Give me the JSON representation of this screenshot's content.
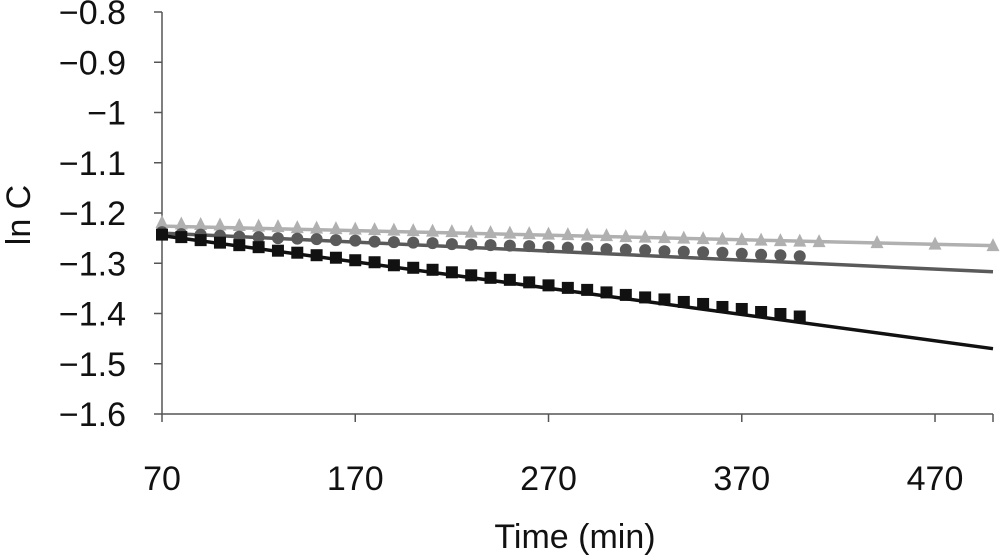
{
  "chart_data": {
    "type": "scatter",
    "xlabel": "Time (min)",
    "ylabel": "ln C",
    "xlim": [
      70,
      500
    ],
    "ylim": [
      -1.6,
      -0.8
    ],
    "x_ticks": [
      70,
      170,
      270,
      370,
      470
    ],
    "y_ticks": [
      -0.8,
      -0.9,
      -1,
      -1.1,
      -1.2,
      -1.3,
      -1.4,
      -1.5,
      -1.6
    ],
    "x_tick_labels": [
      "70",
      "170",
      "270",
      "370",
      "470"
    ],
    "y_tick_labels": [
      "−0.8",
      "−0.9",
      "−1",
      "−1.1",
      "−1.2",
      "−1.3",
      "−1.4",
      "−1.5",
      "−1.6"
    ],
    "grid": false,
    "series": [
      {
        "marker": "triangle",
        "color": "#b0b0b0",
        "x": [
          70,
          80,
          90,
          100,
          110,
          120,
          130,
          140,
          150,
          160,
          170,
          180,
          190,
          200,
          210,
          220,
          230,
          240,
          250,
          260,
          270,
          280,
          290,
          300,
          310,
          320,
          330,
          340,
          350,
          360,
          370,
          380,
          390,
          400,
          410,
          440,
          470,
          500
        ],
        "y": [
          -1.218,
          -1.221,
          -1.222,
          -1.223,
          -1.224,
          -1.225,
          -1.226,
          -1.228,
          -1.229,
          -1.23,
          -1.231,
          -1.232,
          -1.233,
          -1.234,
          -1.235,
          -1.236,
          -1.237,
          -1.238,
          -1.239,
          -1.24,
          -1.241,
          -1.242,
          -1.243,
          -1.244,
          -1.246,
          -1.247,
          -1.248,
          -1.249,
          -1.25,
          -1.251,
          -1.252,
          -1.253,
          -1.254,
          -1.255,
          -1.256,
          -1.258,
          -1.261,
          -1.264
        ],
        "fit": [
          [
            70,
            -1.226
          ],
          [
            500,
            -1.265
          ]
        ]
      },
      {
        "marker": "circle",
        "color": "#5a5a5a",
        "x": [
          70,
          80,
          90,
          100,
          110,
          120,
          130,
          140,
          150,
          160,
          170,
          180,
          190,
          200,
          210,
          220,
          230,
          240,
          250,
          260,
          270,
          280,
          290,
          300,
          310,
          320,
          330,
          340,
          350,
          360,
          370,
          380,
          390,
          400
        ],
        "y": [
          -1.238,
          -1.242,
          -1.243,
          -1.245,
          -1.247,
          -1.248,
          -1.25,
          -1.251,
          -1.252,
          -1.254,
          -1.255,
          -1.257,
          -1.258,
          -1.259,
          -1.26,
          -1.262,
          -1.263,
          -1.264,
          -1.265,
          -1.266,
          -1.268,
          -1.269,
          -1.27,
          -1.272,
          -1.273,
          -1.274,
          -1.276,
          -1.277,
          -1.278,
          -1.279,
          -1.281,
          -1.283,
          -1.284,
          -1.286
        ],
        "fit": [
          [
            70,
            -1.24
          ],
          [
            500,
            -1.317
          ]
        ]
      },
      {
        "marker": "square",
        "color": "#111111",
        "x": [
          70,
          80,
          90,
          100,
          110,
          120,
          130,
          140,
          150,
          160,
          170,
          180,
          190,
          200,
          210,
          220,
          230,
          240,
          250,
          260,
          270,
          280,
          290,
          300,
          310,
          320,
          330,
          340,
          350,
          360,
          370,
          380,
          390,
          400
        ],
        "y": [
          -1.243,
          -1.248,
          -1.254,
          -1.259,
          -1.264,
          -1.268,
          -1.275,
          -1.279,
          -1.284,
          -1.289,
          -1.294,
          -1.298,
          -1.304,
          -1.309,
          -1.313,
          -1.318,
          -1.324,
          -1.329,
          -1.333,
          -1.338,
          -1.344,
          -1.349,
          -1.353,
          -1.358,
          -1.363,
          -1.368,
          -1.372,
          -1.377,
          -1.381,
          -1.387,
          -1.391,
          -1.397,
          -1.401,
          -1.406
        ],
        "fit": [
          [
            70,
            -1.245
          ],
          [
            500,
            -1.47
          ]
        ]
      }
    ]
  }
}
